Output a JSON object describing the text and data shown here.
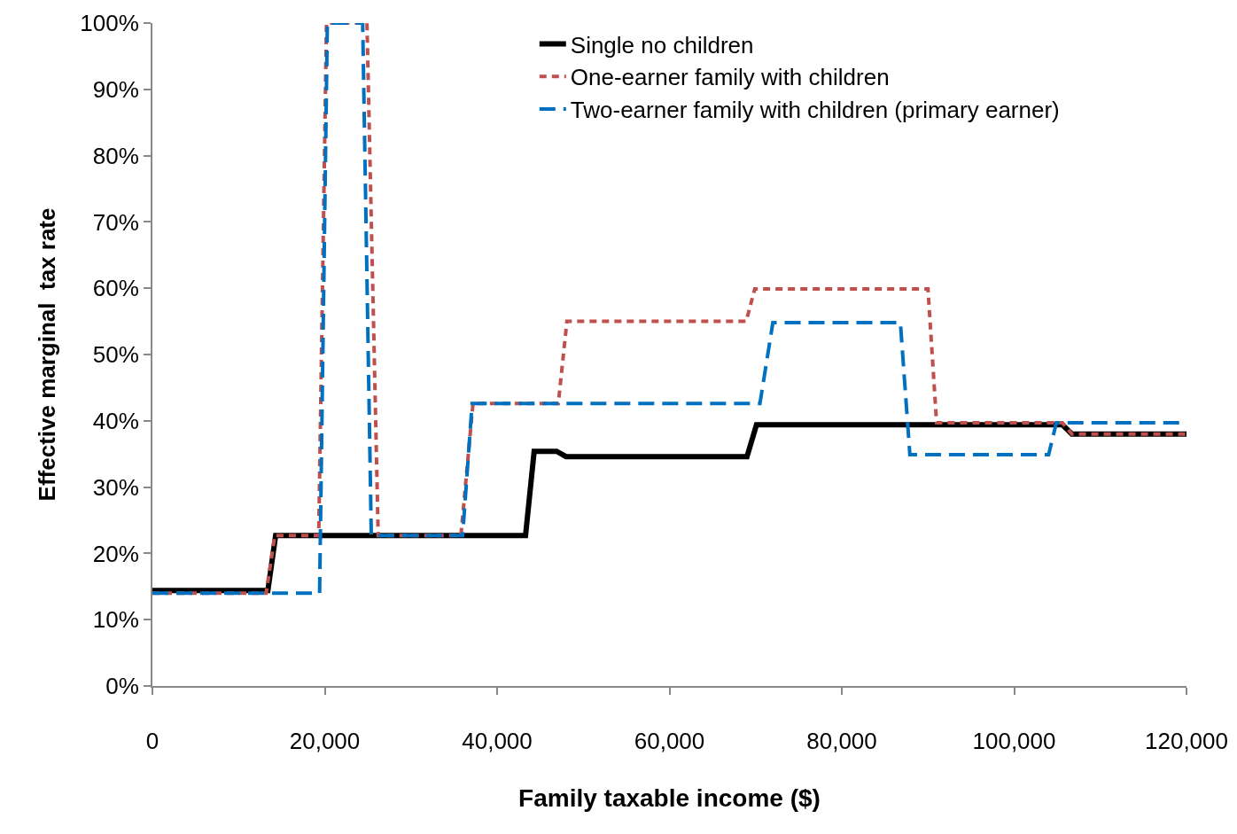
{
  "chart_data": {
    "type": "line",
    "xlabel": "Family taxable income ($)",
    "ylabel": "Effective marginal  tax rate",
    "xlim": [
      0,
      120000
    ],
    "xticks": [
      {
        "value": 0,
        "label": "0"
      },
      {
        "value": 20000,
        "label": "20,000"
      },
      {
        "value": 40000,
        "label": "40,000"
      },
      {
        "value": 60000,
        "label": "60,000"
      },
      {
        "value": 80000,
        "label": "80,000"
      },
      {
        "value": 100000,
        "label": "100,000"
      },
      {
        "value": 120000,
        "label": "120,000"
      }
    ],
    "ylim": [
      0,
      100
    ],
    "yticks": [
      {
        "value": 0,
        "label": "0%"
      },
      {
        "value": 10,
        "label": "10%"
      },
      {
        "value": 20,
        "label": "20%"
      },
      {
        "value": 30,
        "label": "30%"
      },
      {
        "value": 40,
        "label": "40%"
      },
      {
        "value": 50,
        "label": "50%"
      },
      {
        "value": 60,
        "label": "60%"
      },
      {
        "value": 70,
        "label": "70%"
      },
      {
        "value": 80,
        "label": "80%"
      },
      {
        "value": 90,
        "label": "90%"
      },
      {
        "value": 100,
        "label": "100%"
      }
    ],
    "grid": false,
    "legend": "top right",
    "marker": "none",
    "series": [
      {
        "name": "Single no children",
        "color": "#000000",
        "line_style": "solid",
        "x": [
          0,
          13400,
          14300,
          43300,
          44300,
          46900,
          48000,
          69000,
          70100,
          105600,
          106700,
          120000
        ],
        "values": [
          14.4,
          14.4,
          22.7,
          22.7,
          35.4,
          35.4,
          34.6,
          34.6,
          39.4,
          39.4,
          38.0,
          38.0
        ]
      },
      {
        "name": "One-earner family with children",
        "color": "#c0504d",
        "line_style": "dotted",
        "x": [
          0,
          13200,
          14200,
          19300,
          20200,
          24900,
          26200,
          35800,
          37200,
          47100,
          48100,
          68900,
          69900,
          90000,
          91000,
          105600,
          106700,
          120000
        ],
        "values": [
          14.0,
          14.0,
          22.7,
          22.7,
          100,
          100,
          22.7,
          22.7,
          42.6,
          42.6,
          55.0,
          55.0,
          59.9,
          59.9,
          39.7,
          39.7,
          38.0,
          38.0
        ]
      },
      {
        "name": "Two-earner family with children (primary earner)",
        "color": "#0070c0",
        "line_style": "dashed",
        "x": [
          0,
          19400,
          20300,
          24400,
          25400,
          36000,
          37100,
          70500,
          72000,
          86800,
          87900,
          104000,
          104900,
          120000
        ],
        "values": [
          14.0,
          14.0,
          100,
          100,
          22.7,
          22.7,
          42.6,
          42.6,
          54.8,
          54.8,
          34.9,
          34.9,
          39.7,
          39.7
        ]
      }
    ]
  }
}
